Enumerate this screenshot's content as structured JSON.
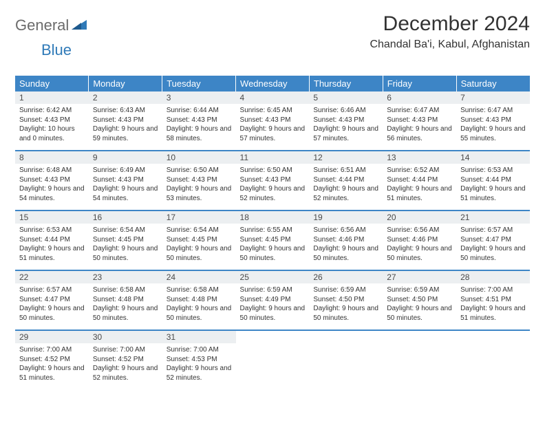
{
  "logo": {
    "word1": "General",
    "word2": "Blue"
  },
  "title": "December 2024",
  "location": "Chandal Ba'i, Kabul, Afghanistan",
  "colors": {
    "header_bg": "#3d85c6",
    "header_text": "#ffffff",
    "daynum_bg": "#eceff1",
    "rule": "#3d85c6",
    "logo_gray": "#6b6b6b",
    "logo_blue": "#2f7ab8"
  },
  "typography": {
    "title_fontsize": 30,
    "location_fontsize": 16,
    "weekday_fontsize": 13,
    "daynum_fontsize": 12,
    "body_fontsize": 10
  },
  "weekdays": [
    "Sunday",
    "Monday",
    "Tuesday",
    "Wednesday",
    "Thursday",
    "Friday",
    "Saturday"
  ],
  "weeks": [
    [
      {
        "n": "1",
        "sr": "Sunrise: 6:42 AM",
        "ss": "Sunset: 4:43 PM",
        "dl": "Daylight: 10 hours and 0 minutes."
      },
      {
        "n": "2",
        "sr": "Sunrise: 6:43 AM",
        "ss": "Sunset: 4:43 PM",
        "dl": "Daylight: 9 hours and 59 minutes."
      },
      {
        "n": "3",
        "sr": "Sunrise: 6:44 AM",
        "ss": "Sunset: 4:43 PM",
        "dl": "Daylight: 9 hours and 58 minutes."
      },
      {
        "n": "4",
        "sr": "Sunrise: 6:45 AM",
        "ss": "Sunset: 4:43 PM",
        "dl": "Daylight: 9 hours and 57 minutes."
      },
      {
        "n": "5",
        "sr": "Sunrise: 6:46 AM",
        "ss": "Sunset: 4:43 PM",
        "dl": "Daylight: 9 hours and 57 minutes."
      },
      {
        "n": "6",
        "sr": "Sunrise: 6:47 AM",
        "ss": "Sunset: 4:43 PM",
        "dl": "Daylight: 9 hours and 56 minutes."
      },
      {
        "n": "7",
        "sr": "Sunrise: 6:47 AM",
        "ss": "Sunset: 4:43 PM",
        "dl": "Daylight: 9 hours and 55 minutes."
      }
    ],
    [
      {
        "n": "8",
        "sr": "Sunrise: 6:48 AM",
        "ss": "Sunset: 4:43 PM",
        "dl": "Daylight: 9 hours and 54 minutes."
      },
      {
        "n": "9",
        "sr": "Sunrise: 6:49 AM",
        "ss": "Sunset: 4:43 PM",
        "dl": "Daylight: 9 hours and 54 minutes."
      },
      {
        "n": "10",
        "sr": "Sunrise: 6:50 AM",
        "ss": "Sunset: 4:43 PM",
        "dl": "Daylight: 9 hours and 53 minutes."
      },
      {
        "n": "11",
        "sr": "Sunrise: 6:50 AM",
        "ss": "Sunset: 4:43 PM",
        "dl": "Daylight: 9 hours and 52 minutes."
      },
      {
        "n": "12",
        "sr": "Sunrise: 6:51 AM",
        "ss": "Sunset: 4:44 PM",
        "dl": "Daylight: 9 hours and 52 minutes."
      },
      {
        "n": "13",
        "sr": "Sunrise: 6:52 AM",
        "ss": "Sunset: 4:44 PM",
        "dl": "Daylight: 9 hours and 51 minutes."
      },
      {
        "n": "14",
        "sr": "Sunrise: 6:53 AM",
        "ss": "Sunset: 4:44 PM",
        "dl": "Daylight: 9 hours and 51 minutes."
      }
    ],
    [
      {
        "n": "15",
        "sr": "Sunrise: 6:53 AM",
        "ss": "Sunset: 4:44 PM",
        "dl": "Daylight: 9 hours and 51 minutes."
      },
      {
        "n": "16",
        "sr": "Sunrise: 6:54 AM",
        "ss": "Sunset: 4:45 PM",
        "dl": "Daylight: 9 hours and 50 minutes."
      },
      {
        "n": "17",
        "sr": "Sunrise: 6:54 AM",
        "ss": "Sunset: 4:45 PM",
        "dl": "Daylight: 9 hours and 50 minutes."
      },
      {
        "n": "18",
        "sr": "Sunrise: 6:55 AM",
        "ss": "Sunset: 4:45 PM",
        "dl": "Daylight: 9 hours and 50 minutes."
      },
      {
        "n": "19",
        "sr": "Sunrise: 6:56 AM",
        "ss": "Sunset: 4:46 PM",
        "dl": "Daylight: 9 hours and 50 minutes."
      },
      {
        "n": "20",
        "sr": "Sunrise: 6:56 AM",
        "ss": "Sunset: 4:46 PM",
        "dl": "Daylight: 9 hours and 50 minutes."
      },
      {
        "n": "21",
        "sr": "Sunrise: 6:57 AM",
        "ss": "Sunset: 4:47 PM",
        "dl": "Daylight: 9 hours and 50 minutes."
      }
    ],
    [
      {
        "n": "22",
        "sr": "Sunrise: 6:57 AM",
        "ss": "Sunset: 4:47 PM",
        "dl": "Daylight: 9 hours and 50 minutes."
      },
      {
        "n": "23",
        "sr": "Sunrise: 6:58 AM",
        "ss": "Sunset: 4:48 PM",
        "dl": "Daylight: 9 hours and 50 minutes."
      },
      {
        "n": "24",
        "sr": "Sunrise: 6:58 AM",
        "ss": "Sunset: 4:48 PM",
        "dl": "Daylight: 9 hours and 50 minutes."
      },
      {
        "n": "25",
        "sr": "Sunrise: 6:59 AM",
        "ss": "Sunset: 4:49 PM",
        "dl": "Daylight: 9 hours and 50 minutes."
      },
      {
        "n": "26",
        "sr": "Sunrise: 6:59 AM",
        "ss": "Sunset: 4:50 PM",
        "dl": "Daylight: 9 hours and 50 minutes."
      },
      {
        "n": "27",
        "sr": "Sunrise: 6:59 AM",
        "ss": "Sunset: 4:50 PM",
        "dl": "Daylight: 9 hours and 50 minutes."
      },
      {
        "n": "28",
        "sr": "Sunrise: 7:00 AM",
        "ss": "Sunset: 4:51 PM",
        "dl": "Daylight: 9 hours and 51 minutes."
      }
    ],
    [
      {
        "n": "29",
        "sr": "Sunrise: 7:00 AM",
        "ss": "Sunset: 4:52 PM",
        "dl": "Daylight: 9 hours and 51 minutes."
      },
      {
        "n": "30",
        "sr": "Sunrise: 7:00 AM",
        "ss": "Sunset: 4:52 PM",
        "dl": "Daylight: 9 hours and 52 minutes."
      },
      {
        "n": "31",
        "sr": "Sunrise: 7:00 AM",
        "ss": "Sunset: 4:53 PM",
        "dl": "Daylight: 9 hours and 52 minutes."
      },
      null,
      null,
      null,
      null
    ]
  ]
}
